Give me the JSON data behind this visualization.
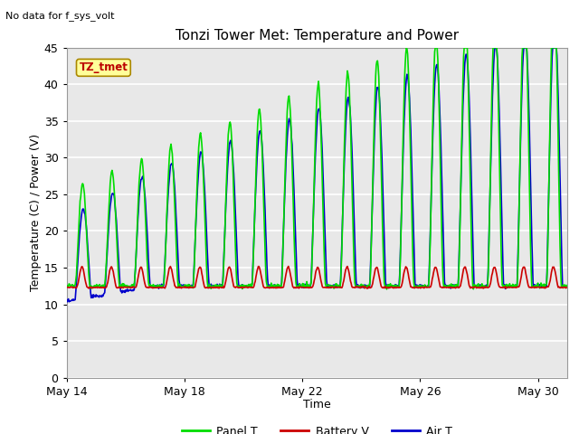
{
  "title": "Tonzi Tower Met: Temperature and Power",
  "top_left_text": "No data for f_sys_volt",
  "xlabel": "Time",
  "ylabel": "Temperature (C) / Power (V)",
  "ylim": [
    0,
    45
  ],
  "yticks": [
    0,
    5,
    10,
    15,
    20,
    25,
    30,
    35,
    40,
    45
  ],
  "xtick_labels": [
    "May 14",
    "May 18",
    "May 22",
    "May 26",
    "May 30"
  ],
  "xtick_days": [
    14,
    18,
    22,
    26,
    30
  ],
  "fig_bg_color": "#ffffff",
  "plot_bg_color": "#e8e8e8",
  "grid_color": "#ffffff",
  "legend_items": [
    "Panel T",
    "Battery V",
    "Air T"
  ],
  "annotation_text": "TZ_tmet",
  "annotation_bg": "#ffff99",
  "annotation_border": "#aa8800",
  "panel_t_color": "#00dd00",
  "battery_v_color": "#cc0000",
  "air_t_color": "#0000cc",
  "line_width": 1.2,
  "title_fontsize": 11,
  "label_fontsize": 9,
  "tick_fontsize": 9
}
